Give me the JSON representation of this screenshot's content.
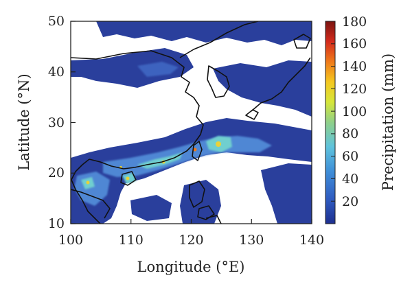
{
  "map": {
    "xlabel": "Longitude (°E)",
    "ylabel": "Latitude (°N)",
    "x_ticks": [
      "100",
      "110",
      "120",
      "130",
      "140"
    ],
    "y_ticks": [
      "10",
      "20",
      "30",
      "40",
      "50"
    ],
    "extent": {
      "lon": [
        100,
        140
      ],
      "lat": [
        10,
        50
      ]
    }
  },
  "colorbar": {
    "label": "Precipitation (mm)",
    "ticks": [
      "20",
      "40",
      "60",
      "80",
      "100",
      "120",
      "140",
      "160",
      "180"
    ],
    "range": [
      0,
      180
    ],
    "colors": [
      "#1d2f8f",
      "#2f5bc0",
      "#3f8fd8",
      "#5fc3dc",
      "#8fd08a",
      "#d6e63a",
      "#f4c820",
      "#ef7a1a",
      "#d42a1c",
      "#7a1410"
    ]
  },
  "colors": {
    "low": "#2a3f9c",
    "mid": "#4f87d4",
    "high": "#6fcfcf",
    "peak": "#e8d23a",
    "coast": "#111111"
  }
}
